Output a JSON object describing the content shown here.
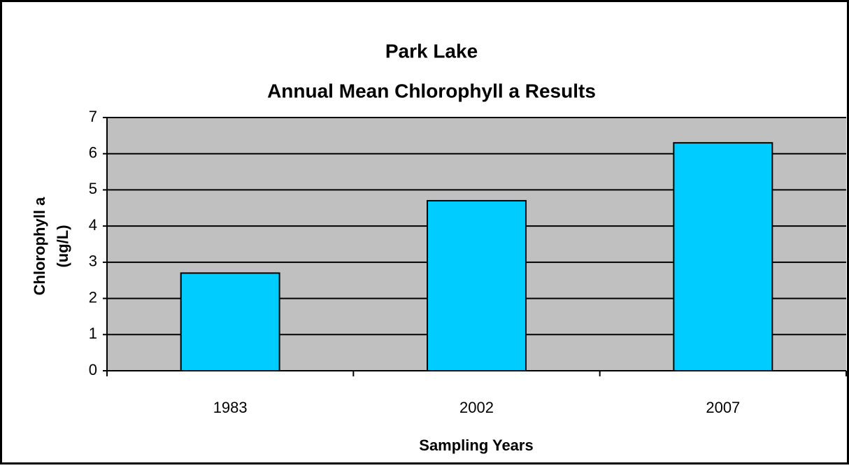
{
  "chart_data": {
    "type": "bar",
    "title": "Park Lake",
    "subtitle": "Annual Mean Chlorophyll a Results",
    "xlabel": "Sampling Years",
    "ylabel": [
      "Chlorophyll a",
      "(ug/L)"
    ],
    "categories": [
      "1983",
      "2002",
      "2007"
    ],
    "values": [
      2.7,
      4.7,
      6.3
    ],
    "color": "#00ccff",
    "ylim": [
      0,
      7
    ],
    "yticks": [
      0,
      1,
      2,
      3,
      4,
      5,
      6,
      7
    ],
    "grid": true
  }
}
